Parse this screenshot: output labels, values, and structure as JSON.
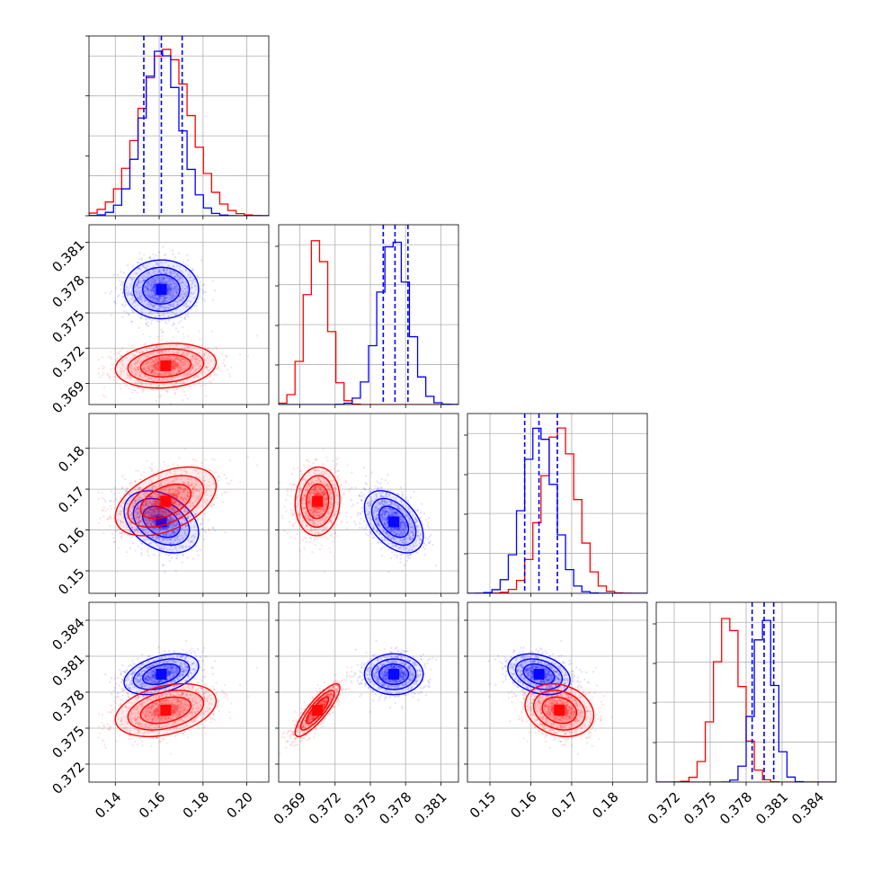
{
  "chart_data": {
    "type": "corner",
    "title": "",
    "parameters": [
      {
        "range": [
          0.128,
          0.21
        ],
        "ticks": [
          0.14,
          0.16,
          0.18,
          0.2
        ],
        "tick_labels": [
          "0.14",
          "0.16",
          "0.18",
          "0.20"
        ]
      },
      {
        "range": [
          0.3672,
          0.3825
        ],
        "ticks": [
          0.369,
          0.372,
          0.375,
          0.378,
          0.381
        ],
        "tick_labels": [
          "0.369",
          "0.372",
          "0.375",
          "0.378",
          "0.381"
        ]
      },
      {
        "range": [
          0.1445,
          0.1885
        ],
        "ticks": [
          0.15,
          0.16,
          0.17,
          0.18
        ],
        "tick_labels": [
          "0.15",
          "0.16",
          "0.17",
          "0.18"
        ]
      },
      {
        "range": [
          0.3705,
          0.3855
        ],
        "ticks": [
          0.372,
          0.375,
          0.378,
          0.381,
          0.384
        ],
        "tick_labels": [
          "0.372",
          "0.375",
          "0.378",
          "0.381",
          "0.384"
        ]
      }
    ],
    "series": [
      {
        "color": "#0000ff",
        "mean": [
          0.161,
          0.377,
          0.162,
          0.3795
        ],
        "sd": [
          0.0085,
          0.00125,
          0.0038,
          0.00085
        ],
        "corr": [
          [
            1,
            0,
            -0.35,
            0.4
          ],
          [
            0,
            1,
            -0.45,
            0
          ],
          [
            -0.35,
            -0.45,
            1,
            -0.3
          ],
          [
            0.4,
            0,
            -0.3,
            1
          ]
        ],
        "quantiles": [
          [
            0.153,
            0.161,
            0.1705
          ],
          [
            0.3761,
            0.3771,
            0.3782
          ],
          [
            0.1585,
            0.162,
            0.1665
          ],
          [
            0.3785,
            0.3795,
            0.3803
          ]
        ]
      },
      {
        "color": "#ff0000",
        "mean": [
          0.163,
          0.3705,
          0.167,
          0.3765
        ],
        "sd": [
          0.0115,
          0.00095,
          0.0042,
          0.0011
        ],
        "corr": [
          [
            1,
            0.15,
            0.45,
            0.35
          ],
          [
            0.15,
            1,
            0.05,
            0.85
          ],
          [
            0.45,
            0.05,
            1,
            -0.2
          ],
          [
            0.35,
            0.85,
            -0.2,
            1
          ]
        ],
        "quantiles": []
      }
    ],
    "grid": true
  }
}
